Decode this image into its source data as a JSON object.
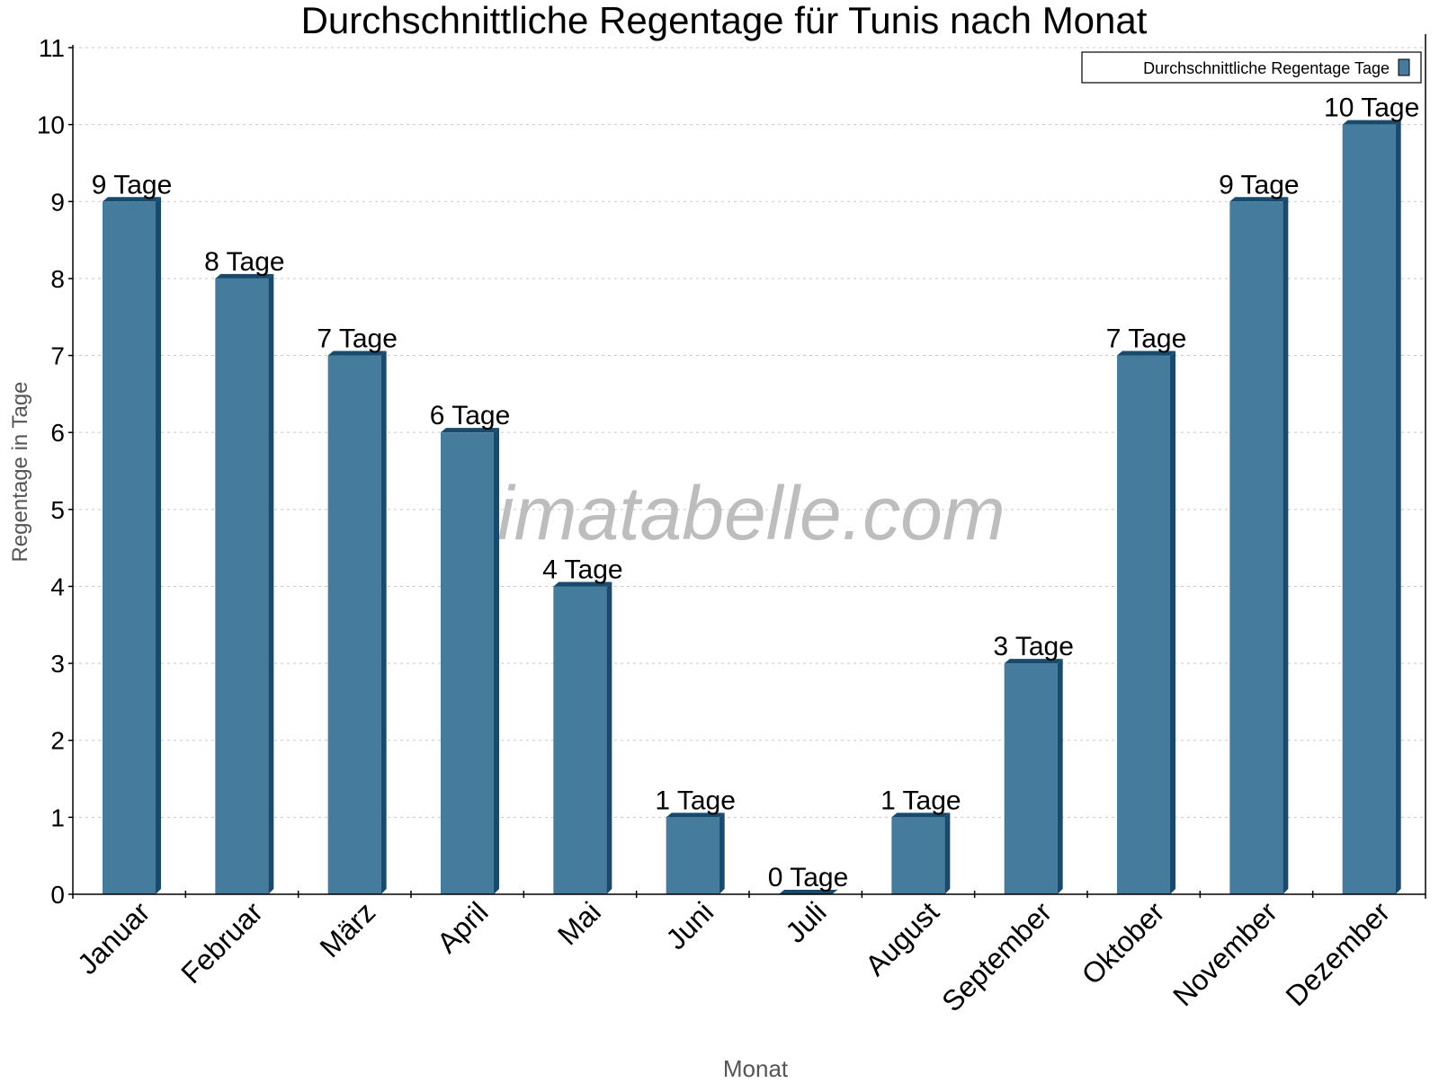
{
  "chart_data": {
    "type": "bar",
    "title": "Durchschnittliche Regentage für Tunis nach Monat",
    "xlabel": "Monat",
    "ylabel": "Regentage in Tage",
    "categories": [
      "Januar",
      "Februar",
      "März",
      "April",
      "Mai",
      "Juni",
      "Juli",
      "August",
      "September",
      "Oktober",
      "November",
      "Dezember"
    ],
    "series": [
      {
        "name": "Durchschnittliche Regentage Tage",
        "values": [
          9,
          8,
          7,
          6,
          4,
          1,
          0,
          1,
          3,
          7,
          9,
          10
        ]
      }
    ],
    "data_labels": [
      "9 Tage",
      "8 Tage",
      "7 Tage",
      "6 Tage",
      "4 Tage",
      "1 Tage",
      "0 Tage",
      "1 Tage",
      "3 Tage",
      "7 Tage",
      "9 Tage",
      "10 Tage"
    ],
    "ylim": [
      0,
      11
    ],
    "yticks": [
      0,
      1,
      2,
      3,
      4,
      5,
      6,
      7,
      8,
      9,
      10,
      11
    ],
    "grid": true,
    "legend_position": "top-right",
    "colors": {
      "bar_front": "#457b9d",
      "bar_side": "#174a6c"
    },
    "watermark": "klimatabelle.com"
  }
}
